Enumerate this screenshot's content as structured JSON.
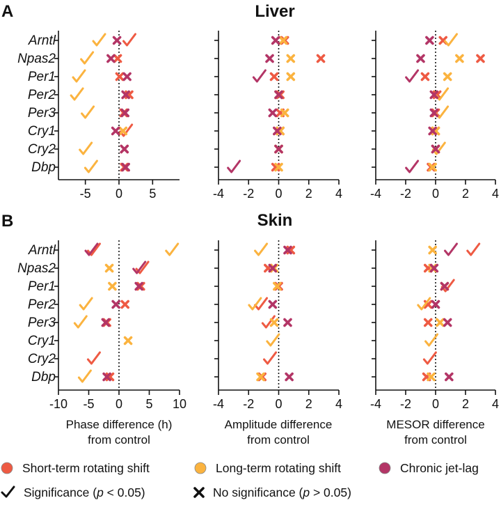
{
  "colors": {
    "short": "#EE5A43",
    "long": "#FBB33F",
    "chronic": "#B33566"
  },
  "panel_letters": {
    "a": "A",
    "b": "B"
  },
  "section_titles": {
    "liver": "Liver",
    "skin": "Skin"
  },
  "x_labels": {
    "phase": [
      "Phase difference (h)",
      "from control"
    ],
    "amplitude": [
      "Amplitude difference",
      "from control"
    ],
    "mesor": [
      "MESOR difference",
      "from control"
    ]
  },
  "legend": {
    "short": "Short-term rotating shift",
    "long": "Long-term rotating shift",
    "chronic": "Chronic jet-lag",
    "sig_prefix": "Significance (",
    "sig_p": "p",
    "sig_suffix": " < 0.05)",
    "nosig_prefix": "No significance (",
    "nosig_p": "p",
    "nosig_suffix": " > 0.05)"
  },
  "chart_data": [
    {
      "type": "scatter",
      "section": "Liver",
      "metric": "Phase difference (h) from control",
      "genes": [
        "Arntl",
        "Npas2",
        "Per1",
        "Per2",
        "Per3",
        "Cry1",
        "Cry2",
        "Dbp"
      ],
      "xlim": [
        -9,
        9
      ],
      "xticks": [
        -5,
        0,
        5
      ],
      "show_tick_labels": true,
      "series": [
        {
          "name": "Short-term rotating shift",
          "key": "short",
          "values": [
            1.5,
            -0.2,
            0.1,
            1.5,
            0.7,
            1.0,
            0.8,
            0.8
          ],
          "significant": [
            true,
            false,
            false,
            false,
            false,
            true,
            false,
            false
          ]
        },
        {
          "name": "Long-term rotating shift",
          "key": "long",
          "values": [
            -3.0,
            -4.8,
            -6.0,
            -6.3,
            -4.7,
            0.6,
            -5.0,
            -4.2
          ],
          "significant": [
            true,
            true,
            true,
            true,
            true,
            false,
            true,
            true
          ]
        },
        {
          "name": "Chronic jet-lag",
          "key": "chronic",
          "values": [
            -0.3,
            -1.2,
            1.2,
            1.0,
            0.9,
            -0.5,
            0.8,
            1.0
          ],
          "significant": [
            false,
            false,
            false,
            false,
            false,
            false,
            false,
            false
          ]
        }
      ]
    },
    {
      "type": "scatter",
      "section": "Liver",
      "metric": "Amplitude difference from control",
      "genes": [
        "Arntl",
        "Npas2",
        "Per1",
        "Per2",
        "Per3",
        "Cry1",
        "Cry2",
        "Dbp"
      ],
      "xlim": [
        -4,
        4
      ],
      "xticks": [
        -4,
        -2,
        0,
        2,
        4
      ],
      "show_tick_labels": true,
      "series": [
        {
          "name": "Short-term rotating shift",
          "key": "short",
          "values": [
            0.4,
            2.8,
            -0.3,
            0.1,
            0.1,
            0.1,
            0.0,
            -0.2
          ],
          "significant": [
            false,
            false,
            false,
            false,
            false,
            false,
            false,
            false
          ]
        },
        {
          "name": "Long-term rotating shift",
          "key": "long",
          "values": [
            0.3,
            0.8,
            0.8,
            0.0,
            0.4,
            0.1,
            0.0,
            0.0
          ],
          "significant": [
            false,
            false,
            false,
            false,
            false,
            false,
            false,
            false
          ]
        },
        {
          "name": "Chronic jet-lag",
          "key": "chronic",
          "values": [
            -0.2,
            -0.6,
            -1.3,
            0.0,
            -0.4,
            -0.1,
            0.0,
            -3.0
          ],
          "significant": [
            false,
            false,
            true,
            false,
            false,
            false,
            false,
            true
          ]
        }
      ]
    },
    {
      "type": "scatter",
      "section": "Liver",
      "metric": "MESOR difference from control",
      "genes": [
        "Arntl",
        "Npas2",
        "Per1",
        "Per2",
        "Per3",
        "Cry1",
        "Cry2",
        "Dbp"
      ],
      "xlim": [
        -4,
        4
      ],
      "xticks": [
        -4,
        -2,
        0,
        2,
        4
      ],
      "show_tick_labels": true,
      "series": [
        {
          "name": "Short-term rotating shift",
          "key": "short",
          "values": [
            0.5,
            3.0,
            -0.7,
            0.1,
            0.0,
            0.0,
            0.0,
            -0.3
          ],
          "significant": [
            false,
            false,
            false,
            false,
            false,
            false,
            false,
            false
          ]
        },
        {
          "name": "Long-term rotating shift",
          "key": "long",
          "values": [
            1.0,
            1.6,
            0.8,
            0.4,
            0.4,
            0.0,
            0.2,
            -0.2
          ],
          "significant": [
            true,
            false,
            false,
            true,
            true,
            false,
            true,
            false
          ]
        },
        {
          "name": "Chronic jet-lag",
          "key": "chronic",
          "values": [
            -0.4,
            -1.0,
            -1.6,
            -0.1,
            -0.1,
            -0.2,
            0.0,
            -1.6
          ],
          "significant": [
            false,
            false,
            true,
            false,
            false,
            false,
            false,
            true
          ]
        }
      ]
    },
    {
      "type": "scatter",
      "section": "Skin",
      "metric": "Phase difference (h) from control",
      "genes": [
        "Arntl",
        "Npas2",
        "Per1",
        "Per2",
        "Per3",
        "Cry1",
        "Cry2",
        "Dbp"
      ],
      "xlim": [
        -10,
        10
      ],
      "xticks": [
        -10,
        -5,
        0,
        5,
        10
      ],
      "show_tick_labels": true,
      "series": [
        {
          "name": "Short-term rotating shift",
          "key": "short",
          "values": [
            -4.2,
            3.8,
            3.6,
            1.0,
            -2.0,
            null,
            -4.2,
            -1.5
          ],
          "significant": [
            true,
            true,
            false,
            false,
            false,
            false,
            true,
            false
          ]
        },
        {
          "name": "Long-term rotating shift",
          "key": "long",
          "values": [
            8.7,
            -1.6,
            -1.1,
            -5.5,
            -6.4,
            1.5,
            null,
            -5.7
          ],
          "significant": [
            true,
            false,
            false,
            true,
            true,
            false,
            false,
            true
          ]
        },
        {
          "name": "Chronic jet-lag",
          "key": "chronic",
          "values": [
            -4.6,
            3.3,
            3.3,
            -0.5,
            -2.2,
            null,
            null,
            -2.0
          ],
          "significant": [
            true,
            true,
            false,
            false,
            false,
            false,
            false,
            false
          ]
        }
      ]
    },
    {
      "type": "scatter",
      "section": "Skin",
      "metric": "Amplitude difference from control",
      "genes": [
        "Arntl",
        "Npas2",
        "Per1",
        "Per2",
        "Per3",
        "Cry1",
        "Cry2",
        "Dbp"
      ],
      "xlim": [
        -4,
        4
      ],
      "xticks": [
        -4,
        -2,
        0,
        2,
        4
      ],
      "show_tick_labels": true,
      "series": [
        {
          "name": "Short-term rotating shift",
          "key": "short",
          "values": [
            0.8,
            -0.7,
            0.0,
            -1.2,
            -0.7,
            null,
            -0.6,
            -1.1
          ],
          "significant": [
            false,
            false,
            false,
            true,
            true,
            false,
            true,
            false
          ]
        },
        {
          "name": "Long-term rotating shift",
          "key": "long",
          "values": [
            -1.2,
            -0.3,
            -0.1,
            -1.6,
            -0.3,
            -0.4,
            null,
            -1.2
          ],
          "significant": [
            true,
            false,
            false,
            true,
            false,
            true,
            false,
            false
          ]
        },
        {
          "name": "Chronic jet-lag",
          "key": "chronic",
          "values": [
            0.6,
            -0.4,
            null,
            -0.4,
            0.6,
            null,
            null,
            0.7
          ],
          "significant": [
            false,
            false,
            false,
            false,
            false,
            false,
            false,
            false
          ]
        }
      ]
    },
    {
      "type": "scatter",
      "section": "Skin",
      "metric": "MESOR difference from control",
      "genes": [
        "Arntl",
        "Npas2",
        "Per1",
        "Per2",
        "Per3",
        "Cry1",
        "Cry2",
        "Dbp"
      ],
      "xlim": [
        -4,
        4
      ],
      "xticks": [
        -4,
        -2,
        0,
        2,
        4
      ],
      "show_tick_labels": true,
      "series": [
        {
          "name": "Short-term rotating shift",
          "key": "short",
          "values": [
            2.5,
            -0.5,
            0.8,
            -0.5,
            -0.5,
            null,
            -0.4,
            -0.6
          ],
          "significant": [
            true,
            false,
            true,
            false,
            false,
            false,
            true,
            false
          ]
        },
        {
          "name": "Long-term rotating shift",
          "key": "long",
          "values": [
            -0.2,
            -0.2,
            0.6,
            -0.8,
            0.3,
            -0.3,
            null,
            -0.3
          ],
          "significant": [
            false,
            false,
            false,
            true,
            false,
            true,
            false,
            false
          ]
        },
        {
          "name": "Chronic jet-lag",
          "key": "chronic",
          "values": [
            1.0,
            -0.1,
            0.6,
            0.0,
            0.8,
            null,
            null,
            0.9
          ],
          "significant": [
            true,
            false,
            false,
            false,
            false,
            false,
            false,
            false
          ]
        }
      ]
    }
  ]
}
